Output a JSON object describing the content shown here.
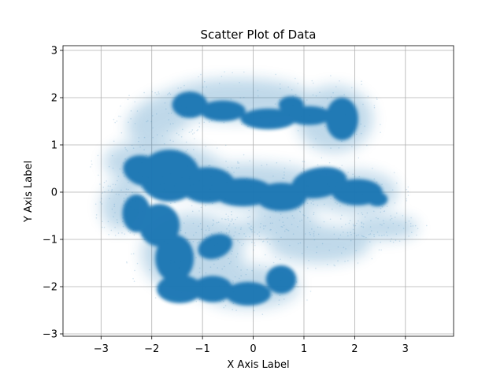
{
  "chart_data": {
    "type": "scatter",
    "title": "Scatter Plot of Data",
    "xlabel": "X Axis Label",
    "ylabel": "Y Axis Label",
    "xlim": [
      -3.75,
      3.95
    ],
    "ylim": [
      -3.05,
      3.1
    ],
    "xticks": [
      -3,
      -2,
      -1,
      0,
      1,
      2,
      3
    ],
    "yticks": [
      -3,
      -2,
      -1,
      0,
      1,
      2,
      3
    ],
    "xtick_labels": [
      "−3",
      "−2",
      "−1",
      "0",
      "1",
      "2",
      "3"
    ],
    "ytick_labels": [
      "−3",
      "−2",
      "−1",
      "0",
      "1",
      "2",
      "3"
    ],
    "grid": true,
    "marker_color": "#1f77b4",
    "density_regions": [
      {
        "name": "top arc",
        "x": [
          -1.4,
          0.0,
          0.9,
          2.1
        ],
        "y": [
          1.9,
          1.6,
          1.55,
          1.4
        ],
        "density": "dense"
      },
      {
        "name": "central band",
        "x": [
          -2.4,
          -1.0,
          0.5,
          1.5,
          2.5
        ],
        "y": [
          0.5,
          0.15,
          -0.1,
          0.15,
          -0.1
        ],
        "density": "dense"
      },
      {
        "name": "lower blob",
        "x": [
          -1.6,
          -1.0,
          -0.2,
          0.6
        ],
        "y": [
          -1.1,
          -1.9,
          -2.2,
          -2.0
        ],
        "density": "dense"
      },
      {
        "name": "right arm",
        "x": [
          1.2,
          2.0,
          2.8
        ],
        "y": [
          -0.9,
          -0.75,
          -0.7
        ],
        "density": "sparse"
      },
      {
        "name": "top-left halo",
        "x": [
          -2.5,
          -1.8,
          -1.2
        ],
        "y": [
          1.2,
          1.7,
          2.1
        ],
        "density": "sparse"
      }
    ]
  }
}
